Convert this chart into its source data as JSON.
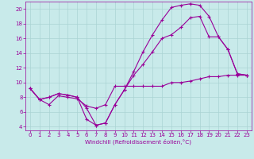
{
  "background_color": "#c8eaea",
  "grid_color": "#aad4d4",
  "line_color": "#990099",
  "marker": "+",
  "xlabel": "Windchill (Refroidissement éolien,°C)",
  "xlim": [
    -0.5,
    23.5
  ],
  "ylim": [
    3.5,
    21.0
  ],
  "yticks": [
    4,
    6,
    8,
    10,
    12,
    14,
    16,
    18,
    20
  ],
  "xticks": [
    0,
    1,
    2,
    3,
    4,
    5,
    6,
    7,
    8,
    9,
    10,
    11,
    12,
    13,
    14,
    15,
    16,
    17,
    18,
    19,
    20,
    21,
    22,
    23
  ],
  "lines": [
    {
      "x": [
        0,
        1,
        2,
        3,
        4,
        5,
        6,
        7,
        8,
        9,
        10,
        11,
        12,
        13,
        14,
        15,
        16,
        17,
        18,
        19,
        20,
        21,
        22,
        23
      ],
      "y": [
        9.2,
        7.7,
        7.0,
        8.2,
        8.0,
        7.8,
        6.8,
        6.5,
        7.0,
        9.5,
        9.5,
        9.5,
        9.5,
        9.5,
        9.5,
        10.0,
        10.0,
        10.2,
        10.5,
        10.8,
        10.8,
        11.0,
        11.0,
        11.0
      ]
    },
    {
      "x": [
        0,
        1,
        2,
        3,
        4,
        5,
        6,
        7,
        8,
        9,
        10,
        11,
        12,
        13,
        14,
        15,
        16,
        17,
        18,
        19,
        20,
        21,
        22,
        23
      ],
      "y": [
        9.2,
        7.7,
        8.0,
        8.5,
        8.3,
        8.0,
        5.0,
        4.2,
        4.5,
        7.0,
        9.0,
        11.5,
        14.2,
        16.5,
        18.5,
        20.2,
        20.5,
        20.7,
        20.5,
        19.0,
        16.2,
        14.5,
        11.2,
        11.0
      ]
    },
    {
      "x": [
        0,
        1,
        2,
        3,
        4,
        5,
        6,
        7,
        8,
        9,
        10,
        11,
        12,
        13,
        14,
        15,
        16,
        17,
        18,
        19,
        20,
        21,
        22,
        23
      ],
      "y": [
        9.2,
        7.7,
        8.0,
        8.5,
        8.3,
        8.0,
        6.5,
        4.2,
        4.5,
        7.0,
        9.0,
        11.0,
        12.5,
        14.2,
        16.0,
        16.5,
        17.5,
        18.8,
        19.0,
        16.2,
        16.2,
        14.5,
        11.2,
        11.0
      ]
    }
  ],
  "tick_fontsize": 5.0,
  "xlabel_fontsize": 5.2,
  "linewidth": 0.8,
  "markersize": 3.5,
  "markeredgewidth": 0.8
}
